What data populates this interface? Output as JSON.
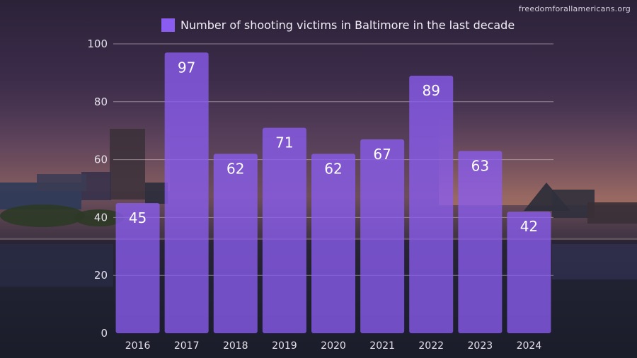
{
  "watermark": "freedomforallamericans.org",
  "colors": {
    "bar": "#8a5cf0",
    "gridline": "#d9c7c7",
    "text": "#e4e0ea"
  },
  "chart_data": {
    "type": "bar",
    "title": "",
    "legend": {
      "label": "Number of shooting victims in Baltimore in the last decade",
      "placement": "top-center"
    },
    "categories": [
      "2016",
      "2017",
      "2018",
      "2019",
      "2020",
      "2021",
      "2022",
      "2023",
      "2024"
    ],
    "series": [
      {
        "name": "Number of shooting victims in Baltimore in the last decade",
        "values": [
          45,
          97,
          62,
          71,
          62,
          67,
          89,
          63,
          42
        ]
      }
    ],
    "yticks": [
      "0",
      "20",
      "40",
      "60",
      "80",
      "100"
    ],
    "ylim": [
      0,
      100
    ],
    "grid": true,
    "data_labels": true,
    "xlabel": "",
    "ylabel": ""
  }
}
